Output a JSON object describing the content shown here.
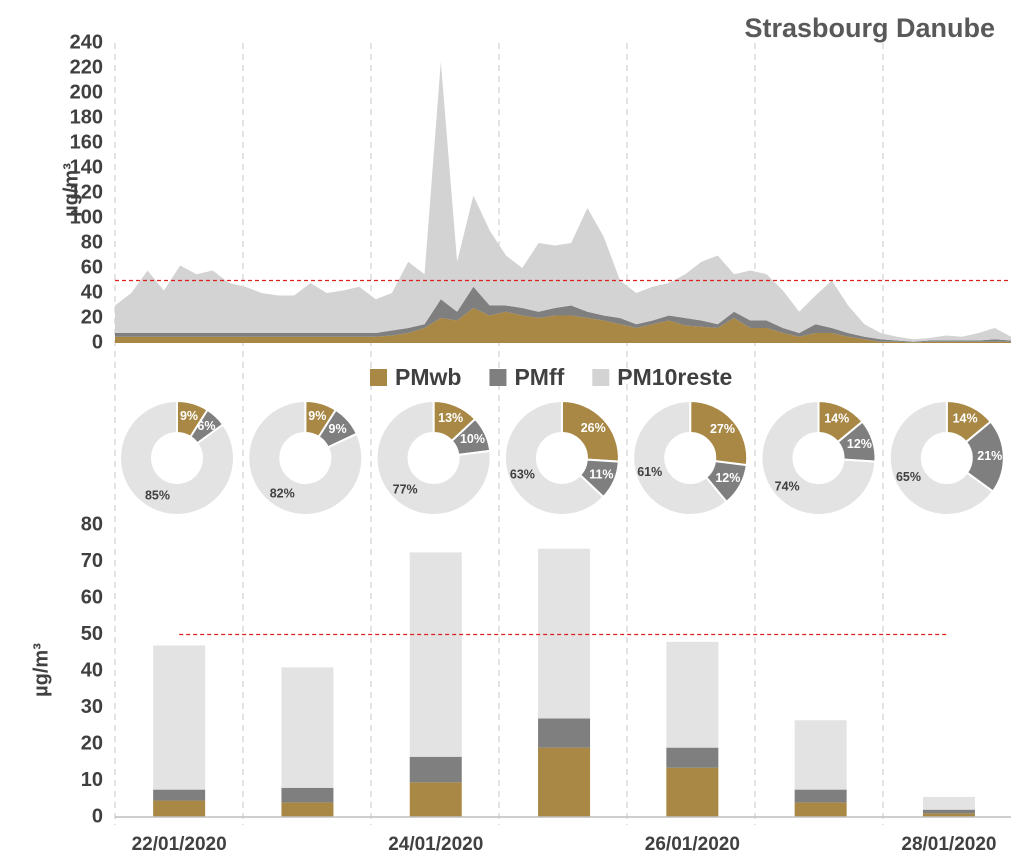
{
  "chart_data": [
    {
      "type": "area",
      "title": "Strasbourg Danube",
      "y_label": "µg/m³",
      "categories": [
        null,
        null,
        null,
        null,
        null,
        null,
        null,
        null,
        null,
        null,
        null,
        null,
        null,
        null,
        null,
        null,
        null,
        null,
        null,
        null,
        null,
        null,
        null,
        null,
        null,
        null,
        null,
        null,
        null,
        null,
        null,
        null,
        null,
        null,
        null,
        null,
        null,
        null,
        null,
        null,
        null,
        null,
        null,
        null,
        null,
        null,
        null,
        null,
        null,
        null,
        null,
        null,
        null,
        null,
        null,
        null
      ],
      "series": [
        {
          "name": "PMwb",
          "color": "#a98845",
          "values": [
            5,
            5,
            5,
            5,
            5,
            5,
            5,
            5,
            5,
            5,
            5,
            5,
            5,
            5,
            5,
            5,
            5,
            6,
            8,
            12,
            20,
            18,
            28,
            22,
            25,
            22,
            20,
            22,
            22,
            20,
            18,
            15,
            12,
            15,
            18,
            14,
            13,
            12,
            20,
            12,
            12,
            8,
            5,
            8,
            8,
            5,
            3,
            1,
            1,
            0.5,
            1,
            1,
            1,
            1,
            1,
            1
          ]
        },
        {
          "name": "PMff",
          "color": "#7f7f7f",
          "values": [
            3,
            3,
            3,
            3,
            3,
            3,
            3,
            3,
            3,
            3,
            3,
            3,
            3,
            3,
            3,
            3,
            3,
            4,
            4,
            3,
            15,
            7,
            17,
            8,
            5,
            6,
            5,
            6,
            8,
            5,
            4,
            5,
            3,
            3,
            4,
            6,
            5,
            3,
            5,
            6,
            6,
            4,
            3,
            7,
            4,
            3,
            2,
            2,
            1,
            0.5,
            1,
            1,
            1,
            1,
            2,
            1
          ]
        },
        {
          "name": "PM10reste",
          "color": "#d3d3d3",
          "values": [
            22,
            32,
            50,
            34,
            54,
            47,
            50,
            40,
            37,
            32,
            30,
            30,
            40,
            32,
            34,
            37,
            27,
            30,
            53,
            40,
            190,
            40,
            73,
            60,
            40,
            32,
            55,
            50,
            50,
            83,
            63,
            30,
            25,
            27,
            26,
            35,
            47,
            55,
            30,
            40,
            37,
            30,
            17,
            23,
            38,
            22,
            10,
            5,
            3,
            2,
            2,
            4,
            3,
            6,
            9,
            3
          ]
        }
      ],
      "threshold": 50,
      "ylim": [
        0,
        240
      ],
      "yticks": [
        0,
        20,
        40,
        60,
        80,
        100,
        120,
        140,
        160,
        180,
        200,
        220,
        240
      ]
    },
    {
      "type": "donut",
      "colors": [
        "#a98845",
        "#7f7f7f",
        "#e3e3e3"
      ],
      "values": [
        9,
        6,
        85
      ],
      "value_labels": [
        "9%",
        "6%",
        "85%"
      ]
    },
    {
      "type": "donut",
      "colors": [
        "#a98845",
        "#7f7f7f",
        "#e3e3e3"
      ],
      "values": [
        9,
        9,
        82
      ],
      "value_labels": [
        "9%",
        "9%",
        "82%"
      ]
    },
    {
      "type": "donut",
      "colors": [
        "#a98845",
        "#7f7f7f",
        "#e3e3e3"
      ],
      "values": [
        13,
        10,
        77
      ],
      "value_labels": [
        "13%",
        "10%",
        "77%"
      ]
    },
    {
      "type": "donut",
      "colors": [
        "#a98845",
        "#7f7f7f",
        "#e3e3e3"
      ],
      "values": [
        26,
        11,
        63
      ],
      "value_labels": [
        "26%",
        "11%",
        "63%"
      ]
    },
    {
      "type": "donut",
      "colors": [
        "#a98845",
        "#7f7f7f",
        "#e3e3e3"
      ],
      "values": [
        27,
        12,
        61
      ],
      "value_labels": [
        "27%",
        "12%",
        "61%"
      ]
    },
    {
      "type": "donut",
      "colors": [
        "#a98845",
        "#7f7f7f",
        "#e3e3e3"
      ],
      "values": [
        14,
        12,
        74
      ],
      "value_labels": [
        "14%",
        "12%",
        "74%"
      ]
    },
    {
      "type": "donut",
      "colors": [
        "#a98845",
        "#7f7f7f",
        "#e3e3e3"
      ],
      "values": [
        14,
        21,
        65
      ],
      "value_labels": [
        "14%",
        "21%",
        "65%"
      ]
    },
    {
      "type": "bar",
      "y_label": "µg/m³",
      "categories": [
        "22/01/2020",
        null,
        "24/01/2020",
        null,
        "26/01/2020",
        null,
        "28/01/2020"
      ],
      "series": [
        {
          "color": "#a98845",
          "values": [
            4.5,
            4,
            9.5,
            19,
            13.5,
            4,
            1
          ]
        },
        {
          "color": "#7f7f7f",
          "values": [
            3,
            4,
            7,
            8,
            5.5,
            3.5,
            1
          ]
        },
        {
          "color": "#e3e3e3",
          "values": [
            39.5,
            33,
            56,
            46.5,
            29,
            19,
            3.5
          ]
        }
      ],
      "threshold": 50,
      "ylim": [
        0,
        80
      ],
      "yticks": [
        0,
        10,
        20,
        30,
        40,
        50,
        60,
        70,
        80
      ]
    }
  ]
}
